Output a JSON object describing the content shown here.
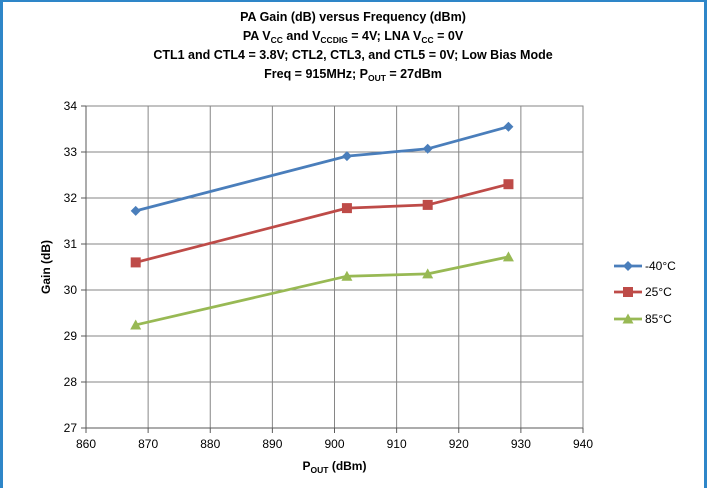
{
  "chart_data": {
    "type": "line",
    "title_lines": [
      [
        {
          "t": "PA Gain (dB) versus Frequency (dBm)"
        }
      ],
      [
        {
          "t": "PA V"
        },
        {
          "t": "CC",
          "sub": true
        },
        {
          "t": " and V"
        },
        {
          "t": "CCDIG",
          "sub": true
        },
        {
          "t": " = 4V; LNA V"
        },
        {
          "t": "CC",
          "sub": true
        },
        {
          "t": "  = 0V"
        }
      ],
      [
        {
          "t": "CTL1 and CTL4 = 3.8V; CTL2, CTL3, and CTL5 = 0V; Low Bias Mode"
        }
      ],
      [
        {
          "t": "Freq = 915MHz; P"
        },
        {
          "t": "OUT",
          "sub": true
        },
        {
          "t": " = 27dBm"
        }
      ]
    ],
    "xlabel": [
      {
        "t": "P"
      },
      {
        "t": "OUT",
        "sub": true
      },
      {
        "t": " (dBm)"
      }
    ],
    "ylabel": "Gain (dB)",
    "xlim": [
      860,
      940
    ],
    "ylim": [
      27,
      34
    ],
    "xticks": [
      860,
      870,
      880,
      890,
      900,
      910,
      920,
      930,
      940
    ],
    "yticks": [
      27,
      28,
      29,
      30,
      31,
      32,
      33,
      34
    ],
    "grid": true,
    "legend_position": "right",
    "series": [
      {
        "name": "-40°C",
        "color": "#4a7ebb",
        "marker": "diamond",
        "x": [
          868,
          902,
          915,
          928
        ],
        "y": [
          31.72,
          32.91,
          33.07,
          33.55
        ]
      },
      {
        "name": "25°C",
        "color": "#be4b48",
        "marker": "square",
        "x": [
          868,
          902,
          915,
          928
        ],
        "y": [
          30.6,
          31.78,
          31.85,
          32.3
        ]
      },
      {
        "name": "85°C",
        "color": "#98b954",
        "marker": "triangle",
        "x": [
          868,
          902,
          915,
          928
        ],
        "y": [
          29.24,
          30.3,
          30.35,
          30.72
        ]
      }
    ]
  }
}
